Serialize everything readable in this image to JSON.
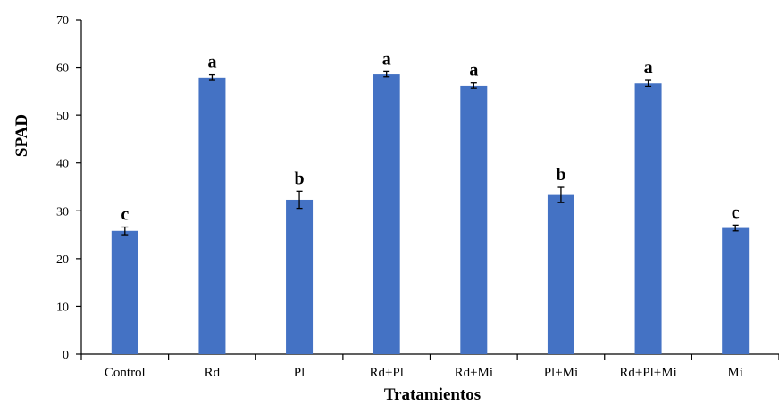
{
  "chart_data": {
    "type": "bar",
    "xlabel": "Tratamientos",
    "ylabel": "SPAD",
    "ylim": [
      0,
      70
    ],
    "yticks": [
      0,
      10,
      20,
      30,
      40,
      50,
      60,
      70
    ],
    "grid": false,
    "bar_color": "#4472C4",
    "categories": [
      "Control",
      "Rd",
      "Pl",
      "Rd+Pl",
      "Rd+Mi",
      "Pl+Mi",
      "Rd+Pl+Mi",
      "Mi"
    ],
    "values": [
      25.8,
      57.9,
      32.3,
      58.6,
      56.2,
      33.3,
      56.7,
      26.4
    ],
    "errors": [
      0.8,
      0.6,
      1.8,
      0.5,
      0.6,
      1.6,
      0.6,
      0.6
    ],
    "labels": [
      "c",
      "a",
      "b",
      "a",
      "a",
      "b",
      "a",
      "c"
    ]
  }
}
